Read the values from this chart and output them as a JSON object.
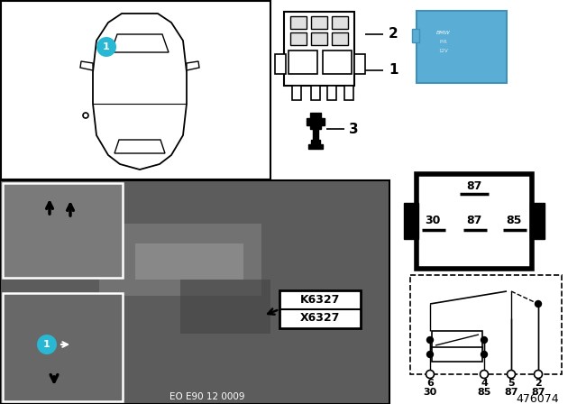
{
  "bg_color": "#ffffff",
  "cyan_color": "#29b8d4",
  "diagram_id": "476074",
  "eo_code": "EO E90 12 0009",
  "k_label": "K6327",
  "x_label": "X6327",
  "photo_bg": "#5a5a5a",
  "photo_inset1_bg": "#7a7a7a",
  "photo_inset2_bg": "#686868",
  "relay_blue": "#5aadd4",
  "relay_blue_dark": "#4090b8"
}
